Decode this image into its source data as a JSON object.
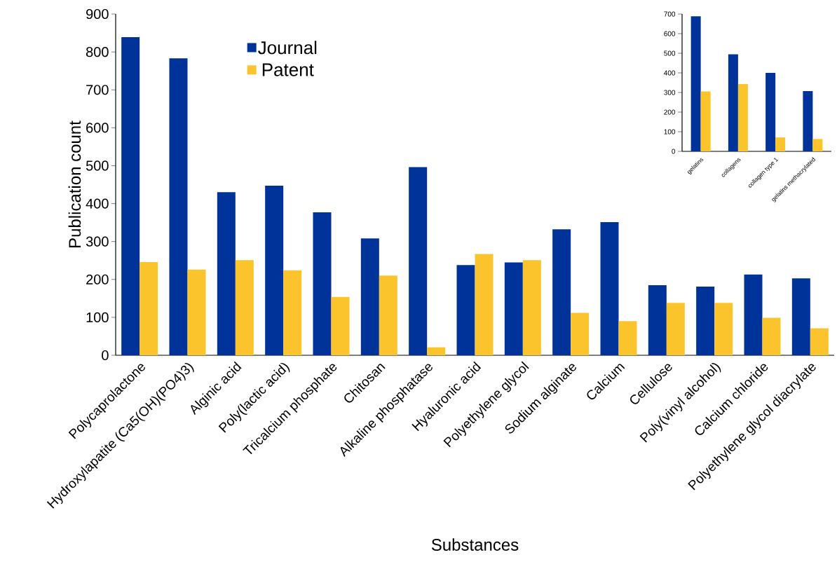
{
  "chart_data": [
    {
      "type": "bar",
      "xlabel": "Substances",
      "ylabel": "Publication count",
      "categories": [
        "Polycaprolactone",
        "Hydroxylapatite (Ca5(OH)(PO4)3)",
        "Alginic acid",
        "Poly(lactic acid)",
        "Tricalcium phosphate",
        "Chitosan",
        "Alkaline phosphatase",
        "Hyaluronic acid",
        "Polyethylene glycol",
        "Sodium alginate",
        "Calcium",
        "Cellulose",
        "Poly(vinyl alcohol)",
        "Calcium chloride",
        "Polyethylene glycol diacrylate"
      ],
      "series": [
        {
          "name": "Journal",
          "color": "#003399",
          "values": [
            839,
            783,
            430,
            447,
            377,
            308,
            496,
            238,
            245,
            332,
            351,
            185,
            181,
            213,
            203
          ]
        },
        {
          "name": "Patent",
          "color": "#fcc42c",
          "values": [
            246,
            226,
            251,
            224,
            154,
            210,
            21,
            267,
            251,
            112,
            90,
            138,
            138,
            99,
            71
          ]
        }
      ],
      "ylim": [
        0,
        900
      ],
      "yticks": [
        0,
        100,
        200,
        300,
        400,
        500,
        600,
        700,
        800,
        900
      ],
      "legend": "top left"
    },
    {
      "type": "bar",
      "categories": [
        "gelatins",
        "collagens",
        "collagen type 1",
        "gelatins methacrylated"
      ],
      "series": [
        {
          "color": "#003399",
          "values": [
            688,
            495,
            400,
            307
          ]
        },
        {
          "color": "#fcc42c",
          "values": [
            305,
            343,
            71,
            63
          ]
        }
      ],
      "ylim": [
        0,
        700
      ],
      "yticks": [
        0,
        100,
        200,
        300,
        400,
        500,
        600,
        700
      ]
    }
  ]
}
